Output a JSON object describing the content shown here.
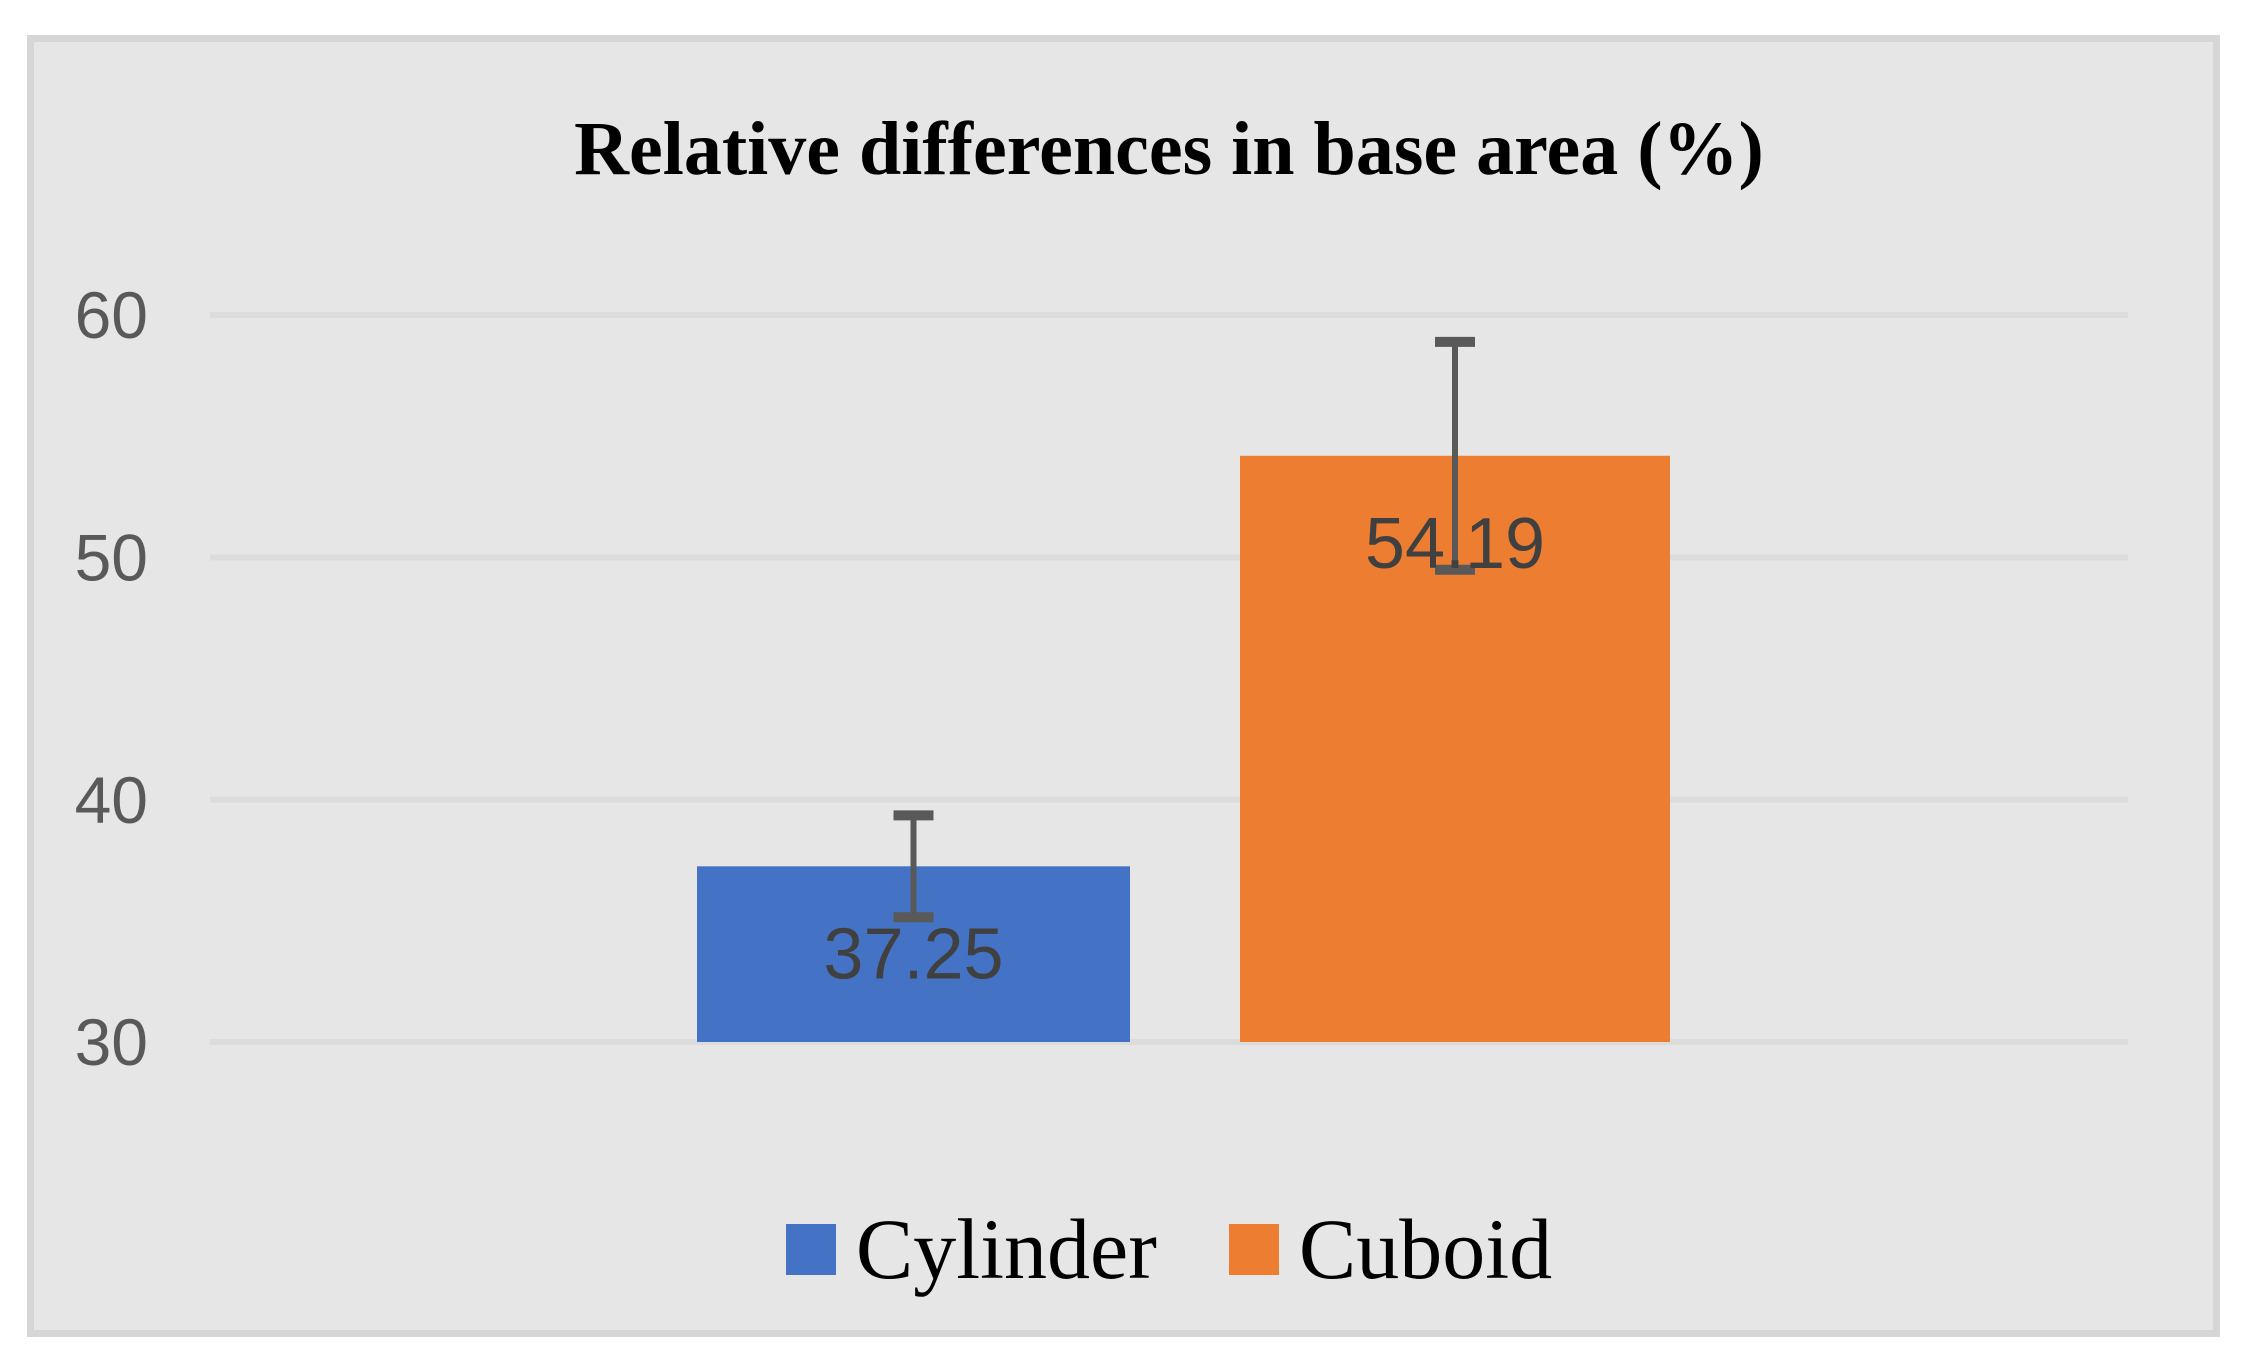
{
  "chart_data": {
    "type": "bar",
    "title": "Relative differences in base area (%)",
    "categories": [
      ""
    ],
    "series": [
      {
        "name": "Cylinder",
        "values": [
          37.25
        ],
        "error_plus_minus": [
          2.1
        ],
        "color": "#4472C4"
      },
      {
        "name": "Cuboid",
        "values": [
          54.19
        ],
        "error_plus_minus": [
          4.7
        ],
        "color": "#ED7D31"
      }
    ],
    "data_labels": [
      "37.25",
      "54.19"
    ],
    "xlabel": "",
    "ylabel": "",
    "ylim": [
      30,
      60
    ],
    "yticks": [
      60,
      50,
      40,
      30
    ],
    "grid": true,
    "legend_position": "bottom"
  },
  "colors": {
    "page_background": "#ffffff",
    "panel_background": "#e6e6e6",
    "panel_border": "#d6d6d6",
    "gridline": "#dcdcdc",
    "error_bar": "#595959",
    "tick_label": "#595959",
    "data_label": "#404040",
    "title_text": "#000000",
    "legend_text": "#000000"
  },
  "legend": {
    "items": [
      {
        "label": "Cylinder",
        "color": "#4472C4"
      },
      {
        "label": "Cuboid",
        "color": "#ED7D31"
      }
    ]
  }
}
